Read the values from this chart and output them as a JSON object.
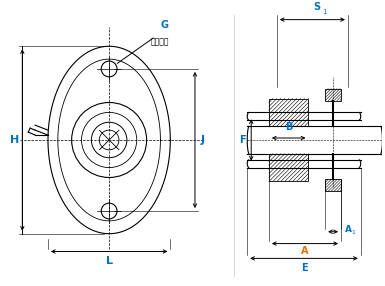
{
  "bg_color": "#ffffff",
  "line_color": "#000000",
  "dim_color": "#000000",
  "blue_color": "#0070c0",
  "orange_color": "#e07000",
  "label_G": "G",
  "label_G_sub": "螺栓尺寸",
  "label_H": "H",
  "label_J": "J",
  "label_L": "L",
  "label_F": "F",
  "label_B": "B",
  "label_S1": "S",
  "label_S1_sub": "1",
  "label_A": "A",
  "label_A1": "A",
  "label_A1_sub": "1",
  "label_E": "E",
  "figsize": [
    3.85,
    2.86
  ],
  "dpi": 100
}
